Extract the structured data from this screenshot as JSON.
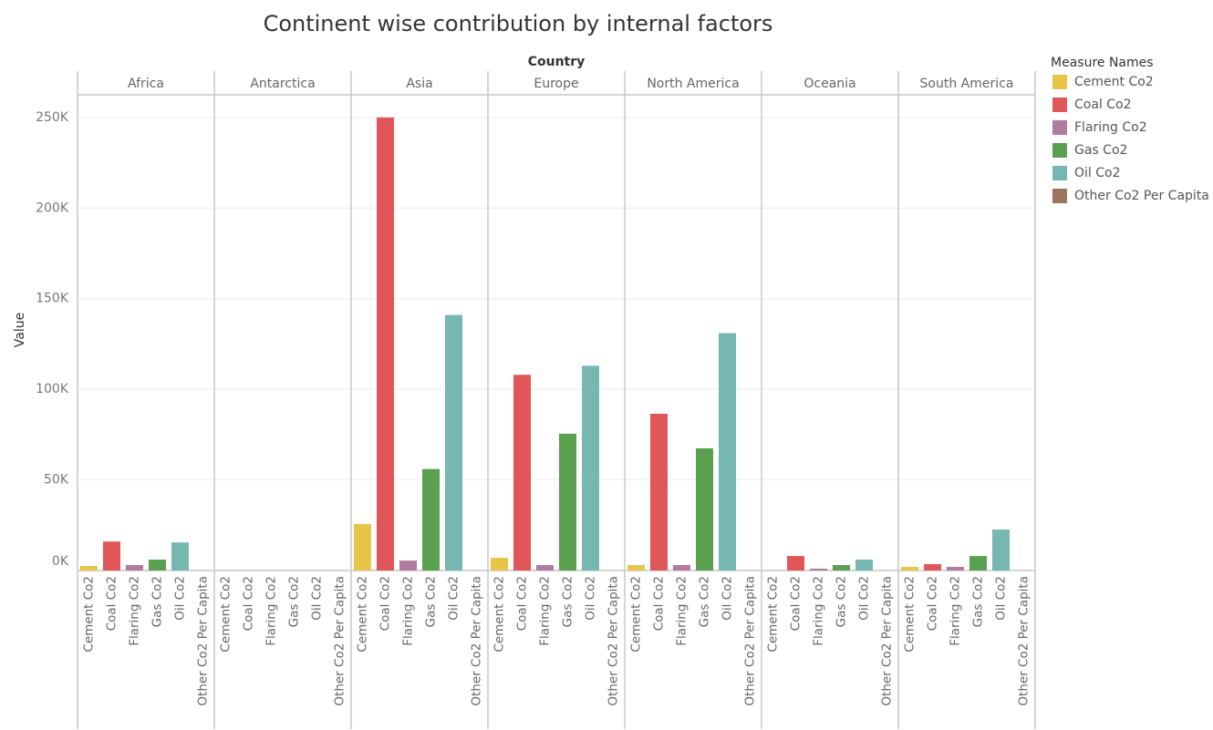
{
  "chart_data": {
    "type": "bar",
    "title": "Continent wise contribution by internal factors",
    "x_label": "Country",
    "y_label": "Value",
    "legend_title": "Measure Names",
    "legend_position": "right",
    "grid": true,
    "facets": [
      "Africa",
      "Antarctica",
      "Asia",
      "Europe",
      "North America",
      "Oceania",
      "South America"
    ],
    "series": [
      {
        "name": "Cement Co2",
        "color": "#e8c547",
        "values": [
          2500,
          0,
          25600,
          7000,
          3000,
          0,
          2000
        ]
      },
      {
        "name": "Coal Co2",
        "color": "#e15759",
        "values": [
          16000,
          0,
          250000,
          108000,
          86500,
          8000,
          3500
        ]
      },
      {
        "name": "Flaring Co2",
        "color": "#b07aa1",
        "values": [
          3000,
          0,
          5500,
          3000,
          3000,
          1000,
          2000
        ]
      },
      {
        "name": "Gas Co2",
        "color": "#59a14f",
        "values": [
          6000,
          0,
          56000,
          75500,
          67400,
          3000,
          8000
        ]
      },
      {
        "name": "Oil Co2",
        "color": "#76b7b2",
        "values": [
          15500,
          0,
          141000,
          113000,
          131000,
          6000,
          22600
        ]
      },
      {
        "name": "Other Co2 Per Capita",
        "color": "#9c755f",
        "values": [
          0,
          0,
          0,
          0,
          0,
          0,
          0
        ]
      }
    ],
    "ylim": [
      0,
      262500
    ],
    "yticks": [
      {
        "value": 0,
        "label": "0K"
      },
      {
        "value": 50000,
        "label": "50K"
      },
      {
        "value": 100000,
        "label": "100K"
      },
      {
        "value": 150000,
        "label": "150K"
      },
      {
        "value": 200000,
        "label": "200K"
      },
      {
        "value": 250000,
        "label": "250K"
      }
    ]
  }
}
